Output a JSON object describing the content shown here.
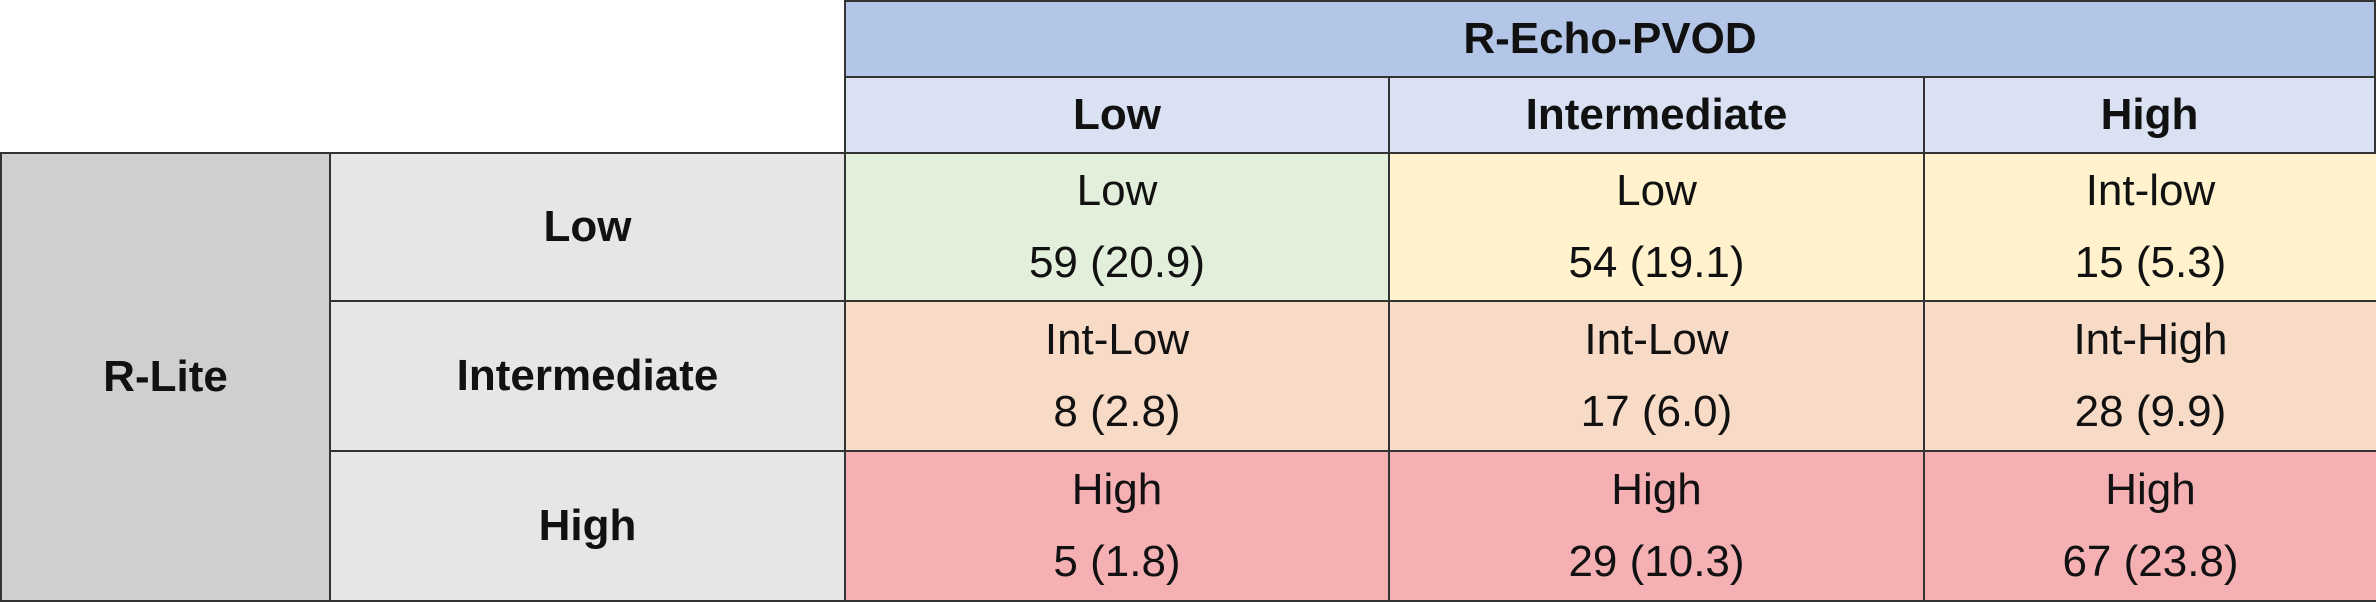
{
  "header": {
    "title": "R-Echo-PVOD",
    "columns": [
      "Low",
      "Intermediate",
      "High"
    ]
  },
  "row_header": "R-Lite",
  "rows": [
    {
      "label": "Low",
      "cells": [
        {
          "category": "Low",
          "value": "59 (20.9)"
        },
        {
          "category": "Low",
          "value": "54 (19.1)"
        },
        {
          "category": "Int-low",
          "value": "15 (5.3)"
        }
      ]
    },
    {
      "label": "Intermediate",
      "cells": [
        {
          "category": "Int-Low",
          "value": "8 (2.8)"
        },
        {
          "category": "Int-Low",
          "value": "17 (6.0)"
        },
        {
          "category": "Int-High",
          "value": "28 (9.9)"
        }
      ]
    },
    {
      "label": "High",
      "cells": [
        {
          "category": "High",
          "value": "5 (1.8)"
        },
        {
          "category": "High",
          "value": "29 (10.3)"
        },
        {
          "category": "High",
          "value": "67 (23.8)"
        }
      ]
    }
  ]
}
